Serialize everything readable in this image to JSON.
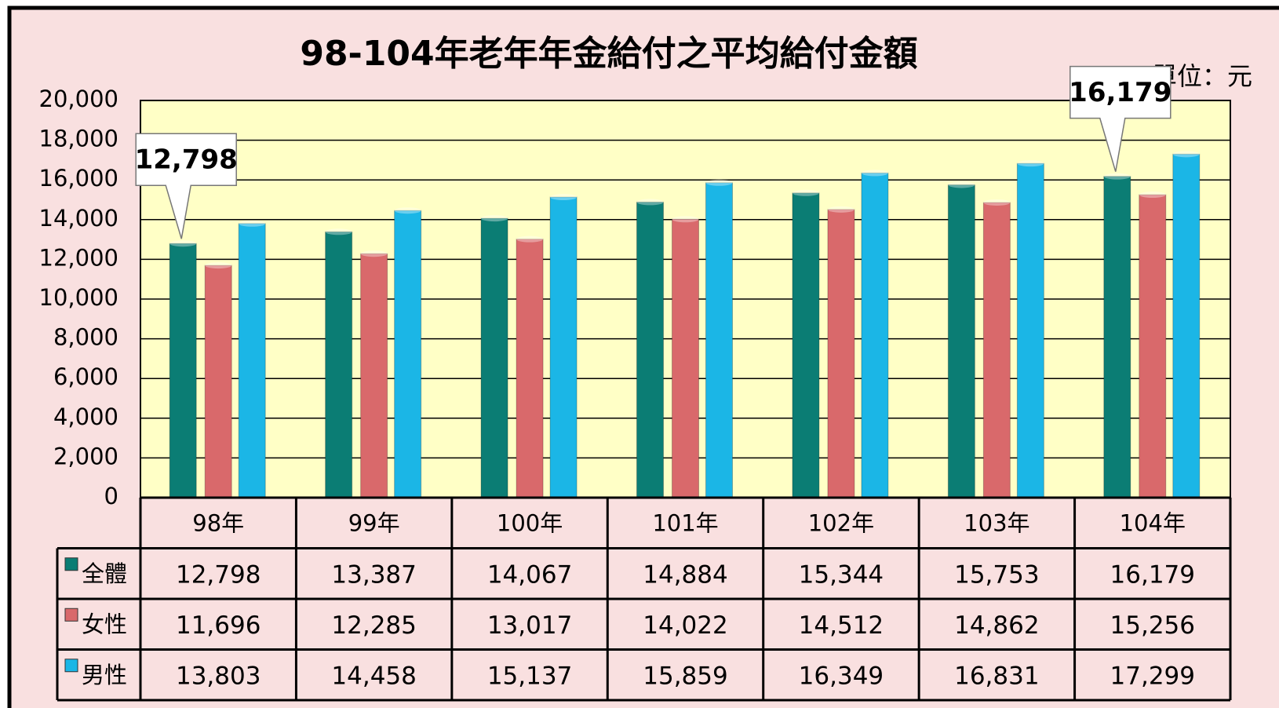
{
  "chart_data": {
    "type": "bar",
    "title": "98-104年老年年金給付之平均給付金額",
    "unit": "單位：元",
    "categories": [
      "98年",
      "99年",
      "100年",
      "101年",
      "102年",
      "103年",
      "104年"
    ],
    "series": [
      {
        "name": "全體",
        "color": "#0b7d74",
        "values": [
          12798,
          13387,
          14067,
          14884,
          15344,
          15753,
          16179
        ],
        "value_labels": [
          "12,798",
          "13,387",
          "14,067",
          "14,884",
          "15,344",
          "15,753",
          "16,179"
        ]
      },
      {
        "name": "女性",
        "color": "#d9696b",
        "values": [
          11696,
          12285,
          13017,
          14022,
          14512,
          14862,
          15256
        ],
        "value_labels": [
          "11,696",
          "12,285",
          "13,017",
          "14,022",
          "14,512",
          "14,862",
          "15,256"
        ]
      },
      {
        "name": "男性",
        "color": "#1bb6e6",
        "values": [
          13803,
          14458,
          15137,
          15859,
          16349,
          16831,
          17299
        ],
        "value_labels": [
          "13,803",
          "14,458",
          "15,137",
          "15,859",
          "16,349",
          "16,831",
          "17,299"
        ]
      }
    ],
    "ylim": [
      0,
      20000
    ],
    "yticks": [
      0,
      {
        "value": 2000,
        "label": "2,000"
      },
      {
        "value": 4000,
        "label": "4,000"
      },
      {
        "value": 6000,
        "label": "6,000"
      },
      {
        "value": 8000,
        "label": "8,000"
      },
      {
        "value": 10000,
        "label": "10,000"
      },
      {
        "value": 12000,
        "label": "12,000"
      },
      {
        "value": 14000,
        "label": "14,000"
      },
      {
        "value": 16000,
        "label": "16,000"
      },
      {
        "value": 18000,
        "label": "18,000"
      },
      {
        "value": 20000,
        "label": "20,000"
      }
    ],
    "grid": true
  }
}
